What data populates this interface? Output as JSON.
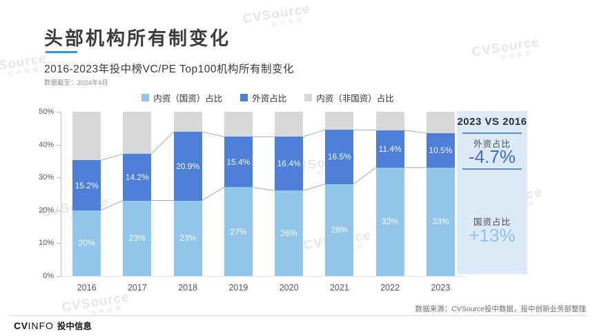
{
  "header": {
    "title": "头部机构所有制变化",
    "subtitle": "2016-2023年投中榜VC/PE Top100机构所有制变化",
    "note": "数据截至：2024年4月"
  },
  "watermark": {
    "brand": "CVSource",
    "sub": "投中数据"
  },
  "legend": {
    "items": [
      {
        "label": "内资（国资）占比",
        "color": "#92C5EA"
      },
      {
        "label": "外资占比",
        "color": "#4E7FD8"
      },
      {
        "label": "内资（非国资）占比",
        "color": "#D8D8D8"
      }
    ]
  },
  "chart_data": {
    "type": "bar",
    "stacked": true,
    "title": "2016-2023年投中榜VC/PE Top100机构所有制变化",
    "categories": [
      "2016",
      "2017",
      "2018",
      "2019",
      "2020",
      "2021",
      "2022",
      "2023"
    ],
    "series": [
      {
        "name": "内资（国资）占比",
        "color": "#92C5EA",
        "values": [
          20,
          23,
          23,
          27,
          26,
          28,
          33,
          33
        ],
        "labels": [
          "20%",
          "23%",
          "23%",
          "27%",
          "26%",
          "28%",
          "33%",
          "33%"
        ]
      },
      {
        "name": "外资占比",
        "color": "#4E7FD8",
        "values": [
          15.2,
          14.2,
          20.9,
          15.4,
          16.4,
          16.5,
          11.4,
          10.5
        ],
        "labels": [
          "15.2%",
          "14.2%",
          "20.9%",
          "15.4%",
          "16.4%",
          "16.5%",
          "11.4%",
          "10.5%"
        ]
      },
      {
        "name": "内资（非国资）占比",
        "color": "#D8D8D8",
        "fill_to_axis_top": true
      }
    ],
    "ylim": [
      0,
      50
    ],
    "yticks": [
      "0%",
      "10%",
      "20%",
      "30%",
      "40%",
      "50%"
    ],
    "grid": false,
    "legend_position": "top"
  },
  "panel": {
    "title": "2023 VS 2016",
    "foreign": {
      "label": "外资占比",
      "value": "-4.7%",
      "color": "#3E6BC6"
    },
    "state": {
      "label": "国资占比",
      "value": "+13%",
      "color": "#8FC2EA"
    },
    "background": "#DCEAF7",
    "line_color": "#5B8BD0"
  },
  "footer": {
    "source": "数据来源：CVSource投中数据，投中创新业务部整理",
    "logo_cv": "CV",
    "logo_info": "INFO",
    "logo_cn": "投中信息"
  },
  "colors": {
    "title_underline": "#2E9CDB",
    "connector_line": "#a8a8a8",
    "axis": "#bdbdbd"
  }
}
